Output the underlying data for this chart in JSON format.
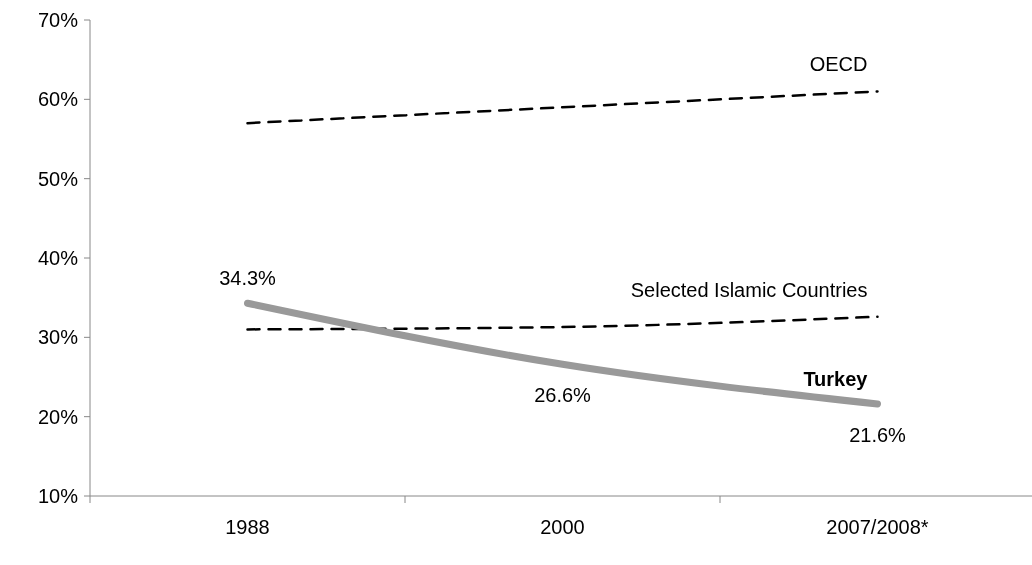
{
  "chart_data": {
    "type": "line",
    "categories": [
      "1988",
      "2000",
      "2007/2008*"
    ],
    "series": [
      {
        "name": "OECD",
        "color": "#000000",
        "line_style": "dashed",
        "values": [
          57,
          59,
          61
        ]
      },
      {
        "name": "Selected Islamic Countries",
        "color": "#000000",
        "line_style": "dashed",
        "values": [
          31,
          31.3,
          32.6
        ]
      },
      {
        "name": "Turkey",
        "color": "#999999",
        "line_style": "solid",
        "values": [
          34.3,
          26.6,
          21.6
        ],
        "value_labels": [
          "34.3%",
          "26.6%",
          "21.6%"
        ]
      }
    ],
    "ylim": [
      10,
      70
    ],
    "yticks": [
      {
        "value": 10,
        "label": "10%"
      },
      {
        "value": 20,
        "label": "20%"
      },
      {
        "value": 30,
        "label": "30%"
      },
      {
        "value": 40,
        "label": "40%"
      },
      {
        "value": 50,
        "label": "50%"
      },
      {
        "value": 60,
        "label": "60%"
      },
      {
        "value": 70,
        "label": "70%"
      }
    ],
    "grid": false,
    "legend": false
  }
}
